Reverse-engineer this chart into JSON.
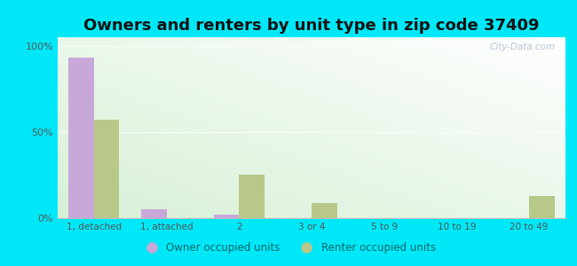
{
  "title": "Owners and renters by unit type in zip code 37409",
  "categories": [
    "1, detached",
    "1, attached",
    "2",
    "3 or 4",
    "5 to 9",
    "10 to 19",
    "20 to 49"
  ],
  "owner_values": [
    93,
    5,
    2,
    0,
    0,
    0,
    0
  ],
  "renter_values": [
    57,
    0,
    25,
    9,
    0,
    0,
    13
  ],
  "owner_color": "#c8a8d8",
  "renter_color": "#b8c888",
  "background_outer": "#00e8f8",
  "background_inner_topleft": "#c8e8c0",
  "background_inner_white": "#f8fff8",
  "yticks": [
    0,
    50,
    100
  ],
  "ytick_labels": [
    "0%",
    "50%",
    "100%"
  ],
  "ylim": [
    0,
    105
  ],
  "legend_owner": "Owner occupied units",
  "legend_renter": "Renter occupied units",
  "title_fontsize": 13,
  "watermark": "City-Data.com"
}
